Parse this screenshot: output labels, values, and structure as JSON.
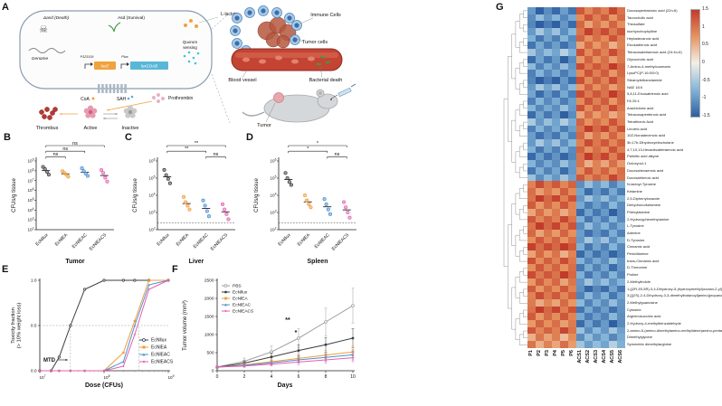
{
  "figure": {
    "background": "#ffffff"
  },
  "series_colors": {
    "PBS": "#9d9d9d",
    "EcNllux": "#3d3d3d",
    "EcNlEA": "#f09c3a",
    "EcNlEAC": "#4d8fd1",
    "EcNlEACS": "#e45fae"
  },
  "panels": {
    "A": {
      "label": "A",
      "labels": {
        "death": "Δasd (Death)",
        "survival": "Asd (Survival)",
        "lactate": "L-lactate",
        "genome": "Genome",
        "promoter1": "PJ23119",
        "promoter2": "Plux",
        "gene1": "luxE",
        "gene2": "luxCDAB",
        "quorum": "Quorum sensing",
        "coa": "CoA",
        "sah": "SAH",
        "prothrombin": "Prothrombin",
        "thrombus": "Thrombus",
        "active": "Active",
        "inactive": "Inactive",
        "immune": "Immune Cells",
        "tumor_cells": "Tumor cells",
        "vessel": "Blood vessel",
        "bacterial_death": "Bacterial death",
        "tumor": "Tumor"
      }
    },
    "B": {
      "label": "B"
    },
    "C": {
      "label": "C"
    },
    "D": {
      "label": "D"
    },
    "E": {
      "label": "E"
    },
    "F": {
      "label": "F"
    },
    "G": {
      "label": "G"
    }
  },
  "chart_data": [
    {
      "id": "B",
      "type": "scatter",
      "group_axis_label": "Tumor",
      "ylabel": "CFUs/g tissue",
      "categories": [
        "EcNllux",
        "EcNlEA",
        "EcNlEAC",
        "EcNlEACS"
      ],
      "exp_range": [
        2,
        9
      ],
      "ytick_exponents": [
        2,
        3,
        4,
        5,
        6,
        7,
        8,
        9
      ],
      "lod": null,
      "values": [
        [
          250000000.0,
          150000000.0,
          80000000.0,
          40000000.0
        ],
        [
          90000000.0,
          60000000.0,
          40000000.0,
          25000000.0
        ],
        [
          180000000.0,
          90000000.0,
          50000000.0,
          30000000.0
        ],
        [
          120000000.0,
          60000000.0,
          20000000.0,
          8000000.0
        ]
      ],
      "significance": [
        {
          "pair": [
            0,
            3
          ],
          "label": "ns"
        },
        {
          "pair": [
            0,
            2
          ],
          "label": "ns"
        },
        {
          "pair": [
            0,
            1
          ],
          "label": "ns"
        }
      ]
    },
    {
      "id": "C",
      "type": "scatter",
      "group_axis_label": "Liver",
      "ylabel": "CFUs/g tissue",
      "categories": [
        "EcNllux",
        "EcNlEA",
        "EcNlEAC",
        "EcNlEACS"
      ],
      "exp_range": [
        2,
        6
      ],
      "ytick_exponents": [
        2,
        3,
        4,
        5,
        6
      ],
      "lod": 250,
      "values": [
        [
          300000.0,
          150000.0,
          90000.0,
          50000.0
        ],
        [
          8000.0,
          4000.0,
          2500.0,
          1500.0
        ],
        [
          5000.0,
          2500.0,
          1200.0,
          600.0
        ],
        [
          3000.0,
          1500.0,
          800.0,
          400.0
        ]
      ],
      "significance": [
        {
          "pair": [
            0,
            3
          ],
          "label": "**"
        },
        {
          "pair": [
            0,
            2
          ],
          "label": "**"
        },
        {
          "pair": [
            2,
            3
          ],
          "label": "ns"
        }
      ]
    },
    {
      "id": "D",
      "type": "scatter",
      "group_axis_label": "Spleen",
      "ylabel": "CFUs/g tissue",
      "categories": [
        "EcNllux",
        "EcNlEA",
        "EcNlEAC",
        "EcNlEACS"
      ],
      "exp_range": [
        2,
        6
      ],
      "ytick_exponents": [
        2,
        3,
        4,
        5,
        6
      ],
      "lod": 250,
      "values": [
        [
          200000.0,
          100000.0,
          60000.0,
          40000.0
        ],
        [
          10000.0,
          5000.0,
          3000.0,
          2000.0
        ],
        [
          6000.0,
          3000.0,
          1500.0,
          800.0
        ],
        [
          4000.0,
          2000.0,
          1000.0,
          500.0
        ]
      ],
      "significance": [
        {
          "pair": [
            0,
            3
          ],
          "label": "*"
        },
        {
          "pair": [
            0,
            2
          ],
          "label": "*"
        },
        {
          "pair": [
            2,
            3
          ],
          "label": "ns"
        }
      ]
    },
    {
      "id": "E",
      "type": "line",
      "xlabel": "Dose (CFUs)",
      "ylabel_lines": [
        "Toxicity fraction",
        "(> 10% weight loss)"
      ],
      "x_exp_range": [
        7,
        9
      ],
      "xtick_exponents": [
        7,
        8,
        9
      ],
      "yticks": [
        0,
        0.5,
        1
      ],
      "x": [
        10000000.0,
        15000000.0,
        20000000.0,
        30000000.0,
        50000000.0,
        100000000.0,
        200000000.0,
        300000000.0,
        500000000.0,
        1000000000.0
      ],
      "series": [
        {
          "name": "EcNllux",
          "marker": "circle-open",
          "y": [
            0,
            0,
            0.15,
            0.5,
            0.9,
            1,
            1,
            1,
            1,
            1
          ]
        },
        {
          "name": "EcNlEA",
          "marker": "square",
          "y": [
            0,
            0,
            0,
            0,
            0,
            0,
            0.2,
            0.55,
            1,
            1
          ]
        },
        {
          "name": "EcNlEAC",
          "marker": "triangle",
          "y": [
            0,
            0,
            0,
            0,
            0,
            0,
            0.1,
            0.5,
            0.95,
            1
          ]
        },
        {
          "name": "EcNlEACS",
          "marker": "diamond",
          "y": [
            0,
            0,
            0,
            0,
            0,
            0,
            0.05,
            0.4,
            0.9,
            1
          ]
        }
      ],
      "mtd": {
        "label": "MTD",
        "lines_x": [
          30000000.0,
          350000000.0
        ],
        "threshold": 0.5
      }
    },
    {
      "id": "F",
      "type": "line",
      "xlabel": "Days",
      "ylabel": "Tumor volume (mm³)",
      "x": [
        0,
        2,
        4,
        6,
        8,
        10
      ],
      "yticks": [
        0,
        500,
        1000,
        1500,
        2000,
        2500
      ],
      "series": [
        {
          "name": "PBS",
          "marker": "circle-open",
          "values": [
            100,
            260,
            520,
            900,
            1350,
            1800
          ],
          "errors": [
            40,
            90,
            160,
            260,
            380,
            480
          ]
        },
        {
          "name": "EcNllux",
          "marker": "circle",
          "values": [
            100,
            210,
            380,
            560,
            720,
            900
          ],
          "errors": [
            30,
            60,
            100,
            150,
            200,
            260
          ]
        },
        {
          "name": "EcNlEA",
          "marker": "square",
          "values": [
            100,
            160,
            250,
            340,
            430,
            520
          ],
          "errors": [
            25,
            45,
            70,
            100,
            130,
            160
          ]
        },
        {
          "name": "EcNlEAC",
          "marker": "triangle",
          "values": [
            100,
            150,
            220,
            300,
            370,
            440
          ],
          "errors": [
            25,
            40,
            60,
            85,
            110,
            140
          ]
        },
        {
          "name": "EcNlEACS",
          "marker": "diamond",
          "values": [
            100,
            130,
            180,
            240,
            300,
            360
          ],
          "errors": [
            20,
            35,
            50,
            70,
            90,
            110
          ]
        }
      ],
      "annotations": [
        {
          "day": 5.2,
          "value": 1350,
          "label": "**"
        },
        {
          "day": 5.8,
          "value": 1000,
          "label": "*"
        }
      ]
    },
    {
      "id": "G",
      "type": "heatmap",
      "columns": [
        "P1",
        "P2",
        "P3",
        "P4",
        "P5",
        "P6",
        "ACS1",
        "ACS2",
        "ACS3",
        "ACS4",
        "ACS5",
        "ACS6"
      ],
      "colorbar_ticks": [
        1.5,
        1,
        0.5,
        0,
        -0.5,
        -1,
        -1.5
      ],
      "colormap": [
        [
          -1.5,
          "#2e5ea1"
        ],
        [
          -0.75,
          "#82b4d8"
        ],
        [
          0,
          "#f3efe8"
        ],
        [
          0.75,
          "#e6945f"
        ],
        [
          1.5,
          "#c23a2b"
        ]
      ],
      "col_jitter": [
        0.22,
        -0.12,
        0.3,
        -0.2,
        0.06,
        -0.28,
        0.16,
        -0.08,
        0.26,
        -0.18,
        0.1,
        -0.24
      ],
      "rows": [
        [
          "Docosapentaenoic acid (22n-6)",
          -1.2,
          1.1
        ],
        [
          "Taurocholic acid",
          -0.9,
          1.0
        ],
        [
          "Thiosulfate",
          -1.3,
          0.9
        ],
        [
          "Isorhynchophylline",
          -0.8,
          1.2
        ],
        [
          "Heptadecanoic acid",
          -1.0,
          1.0
        ],
        [
          "Eicosadienoic acid",
          -1.1,
          0.8
        ],
        [
          "Tetracosatetraenoic acid (24:4n-6)",
          -0.7,
          1.1
        ],
        [
          "Glycocholic acid",
          -1.2,
          0.9
        ],
        [
          "7-Amino-4-methylcoumarin",
          -0.9,
          1.2
        ],
        [
          "LysoPC(P-16:0/0:0)",
          -1.0,
          1.0
        ],
        [
          "Stearoylethanolamide",
          -1.3,
          1.1
        ],
        [
          "NAE 18:0",
          -0.8,
          0.9
        ],
        [
          "5,8,11-Eicosatrienoic acid",
          -1.1,
          1.2
        ],
        [
          "FA 20:4",
          -1.0,
          1.0
        ],
        [
          "Arachidonic acid",
          -0.9,
          1.1
        ],
        [
          "Tetracosapentenoic acid",
          -1.2,
          0.8
        ],
        [
          "Tetrathionic Acid",
          -0.7,
          1.0
        ],
        [
          "Linoleic acid",
          -1.0,
          1.2
        ],
        [
          "10Z-Nonadecenoic acid",
          -1.1,
          0.9
        ],
        [
          "3b,17b-Dihydroxyetiocholane",
          -0.8,
          1.1
        ],
        [
          "4,7,10,13-Hexadecatetraenoic acid",
          -1.0,
          1.0
        ],
        [
          "Palmitic acid alkyne",
          -1.2,
          1.2
        ],
        [
          "Octoxynol-1",
          -0.9,
          0.8
        ],
        [
          "Docosahexaenoic acid",
          -1.1,
          1.0
        ],
        [
          "Docosatrienoic acid",
          -0.8,
          1.1
        ],
        [
          "N-lactoyl-Tyrosine",
          1.1,
          -0.9
        ],
        [
          "Ketamine",
          0.9,
          -1.1
        ],
        [
          "2,5-Diphenyloxazole",
          1.2,
          -0.8
        ],
        [
          "Dehydronorketamine",
          1.0,
          -1.0
        ],
        [
          "Phenylalanine",
          0.8,
          -1.2
        ],
        [
          "2-Hydroxyphenethylamine",
          1.1,
          -1.0
        ],
        [
          "L-Tyrosine",
          1.2,
          -0.9
        ],
        [
          "Adenine",
          0.9,
          -1.1
        ],
        [
          "D-Tyrosine",
          1.0,
          -0.8
        ],
        [
          "Cinnamic acid",
          1.3,
          -1.0
        ],
        [
          "Penicillamine",
          0.8,
          -1.2
        ],
        [
          "trans-Cinnamic acid",
          1.1,
          -0.9
        ],
        [
          "D-Threonine",
          1.0,
          -1.1
        ],
        [
          "Proline",
          1.2,
          -1.0
        ],
        [
          "2-Methylindole",
          0.9,
          -0.8
        ],
        [
          "1-[(2R,3S,5R)-3,4-Dihydroxy-5-(hydroxymethyl)oxolan-2-yl]pyrimidine-2,4-dione",
          1.0,
          -1.2
        ],
        [
          "3-[[(2S)-2,4-Dihydroxy-3,3-dimethylbutanoyl]amino]propanoic acid",
          1.1,
          -1.0
        ],
        [
          "2-Methylguanosine",
          0.8,
          -0.9
        ],
        [
          "Cytosine",
          1.2,
          -1.1
        ],
        [
          "Argininosuccinic acid",
          1.0,
          -1.0
        ],
        [
          "2-Hydroxy-4-methylbenzaldehyde",
          0.9,
          -1.2
        ],
        [
          "2-amino-5-(amino-dimethylamino-methylidene)amino-pentanoic acid",
          1.1,
          -0.8
        ],
        [
          "Dimethylglycine",
          0.7,
          -0.9
        ],
        [
          "Symmetric dimethylarginine",
          0.8,
          -0.7
        ]
      ]
    }
  ]
}
